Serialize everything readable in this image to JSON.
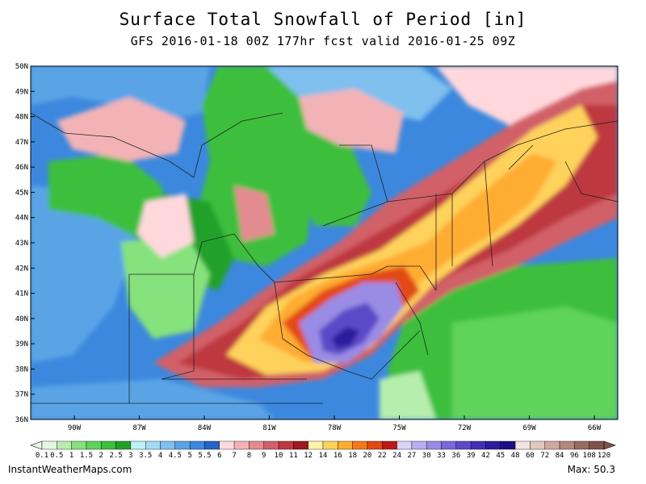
{
  "header": {
    "title": "Surface Total Snowfall of Period [in]",
    "subtitle": "GFS 2016-01-18 00Z 177hr fcst valid 2016-01-25 09Z"
  },
  "map": {
    "lat_labels": [
      "50N",
      "49N",
      "48N",
      "47N",
      "46N",
      "45N",
      "44N",
      "43N",
      "42N",
      "41N",
      "40N",
      "39N",
      "38N",
      "37N",
      "36N"
    ],
    "lon_labels": [
      "90W",
      "87W",
      "84W",
      "81W",
      "78W",
      "75W",
      "72W",
      "69W",
      "66W"
    ],
    "background_color": "#ffffff",
    "boundary_color": "#222222"
  },
  "colorbar": {
    "labels": [
      "0.1",
      "0.5",
      "1",
      "1.5",
      "2",
      "2.5",
      "3",
      "3.5",
      "4",
      "4.5",
      "5",
      "5.5",
      "6",
      "7",
      "8",
      "9",
      "10",
      "11",
      "12",
      "14",
      "16",
      "18",
      "20",
      "22",
      "24",
      "27",
      "30",
      "33",
      "36",
      "39",
      "42",
      "45",
      "48",
      "60",
      "72",
      "84",
      "96",
      "108",
      "120"
    ],
    "colors": [
      "#e4f7e2",
      "#b6eeae",
      "#86e27c",
      "#5fd35a",
      "#3cbf3c",
      "#22a12a",
      "#bef0f7",
      "#a2dcf4",
      "#7fc0ee",
      "#5aa4e6",
      "#3c88de",
      "#2463c8",
      "#ffd8dc",
      "#f3b3b6",
      "#e38c8f",
      "#d26068",
      "#be3840",
      "#9e1a22",
      "#fff4a8",
      "#ffd25c",
      "#ffac30",
      "#f27a1a",
      "#e24a14",
      "#c01818",
      "#d8d4f4",
      "#b8b0ee",
      "#9a8ce4",
      "#7a68d8",
      "#5c48c8",
      "#4230b4",
      "#2a1e9c",
      "#1e0e82",
      "#f2e4e0",
      "#e2c8c0",
      "#cca89e",
      "#b4887c",
      "#9a6c60",
      "#7e5448"
    ]
  },
  "footer": {
    "site": "InstantWeatherMaps.com",
    "max_label": "Max:",
    "max_value": "50.3"
  }
}
